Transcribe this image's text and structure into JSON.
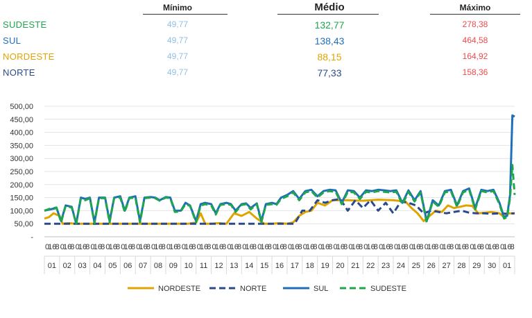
{
  "stats": {
    "headers": {
      "min": "Mínimo",
      "mean": "Médio",
      "max": "Máximo"
    },
    "rows": [
      {
        "name": "SUDESTE",
        "min": "49,77",
        "mean": "132,77",
        "max": "278,38",
        "color": "#1ea64a"
      },
      {
        "name": "SUL",
        "min": "49,77",
        "mean": "138,43",
        "max": "464,58",
        "color": "#1f6fb8"
      },
      {
        "name": "NORDESTE",
        "min": "49,77",
        "mean": "88,15",
        "max": "164,92",
        "color": "#e0a400"
      },
      {
        "name": "NORTE",
        "min": "49,77",
        "mean": "77,33",
        "max": "158,36",
        "color": "#2b4a8a"
      }
    ]
  },
  "chart_data": {
    "type": "line",
    "title": "",
    "xlabel": "",
    "ylabel": "",
    "ylim": [
      0,
      500
    ],
    "y_ticks": [
      "-",
      "50,00",
      "100,00",
      "150,00",
      "200,00",
      "250,00",
      "300,00",
      "350,00",
      "400,00",
      "450,00",
      "500,00"
    ],
    "hour_ticks": [
      "0",
      "16",
      "8"
    ],
    "day_labels": [
      "01",
      "02",
      "03",
      "04",
      "05",
      "06",
      "07",
      "08",
      "09",
      "10",
      "11",
      "12",
      "13",
      "14",
      "15",
      "16",
      "17",
      "18",
      "19",
      "20",
      "21",
      "22",
      "23",
      "24",
      "25",
      "26",
      "27",
      "28",
      "29",
      "30",
      "01"
    ],
    "x_unit": "day index (fractional, 0 = start of day 01)",
    "legend_position": "bottom",
    "grid": "horizontal",
    "series": [
      {
        "name": "NORDESTE",
        "color": "#e0a400",
        "style": "solid",
        "width": 3,
        "x": [
          0,
          0.3,
          0.6,
          1.0,
          1.2,
          1.6,
          2.0,
          2.4,
          2.8,
          3.5,
          4.5,
          5.5,
          6.5,
          7.5,
          8.5,
          9.5,
          10.0,
          10.3,
          10.6,
          11.0,
          11.5,
          12.0,
          12.5,
          13.0,
          13.5,
          14.0,
          14.5,
          15.0,
          15.5,
          16.0,
          16.4,
          16.8,
          17.2,
          17.6,
          18.0,
          18.5,
          19.0,
          20.0,
          21.0,
          22.0,
          23.0,
          23.8,
          24.2,
          24.6,
          25.0,
          25.4,
          25.8,
          26.2,
          26.6,
          27.0,
          27.4,
          27.8,
          28.2,
          28.6,
          29.0,
          29.5,
          30.0,
          30.3,
          30.6,
          31.0
        ],
        "values": [
          70,
          75,
          90,
          80,
          50,
          52,
          50,
          50,
          50,
          50,
          50,
          50,
          50,
          50,
          50,
          50,
          55,
          90,
          50,
          50,
          52,
          50,
          90,
          80,
          95,
          70,
          50,
          50,
          52,
          50,
          55,
          80,
          95,
          100,
          130,
          120,
          140,
          140,
          138,
          142,
          140,
          135,
          110,
          90,
          60,
          80,
          100,
          95,
          120,
          110,
          115,
          120,
          118,
          90,
          92,
          95,
          90,
          75,
          90,
          90
        ]
      },
      {
        "name": "NORTE",
        "color": "#2b4a8a",
        "style": "dashed",
        "width": 3,
        "x": [
          0,
          1,
          2,
          3,
          4,
          5,
          6,
          7,
          8,
          9,
          10,
          11,
          12,
          13,
          14,
          15,
          16,
          16.5,
          17,
          17.5,
          18,
          18.5,
          19,
          19.5,
          20,
          20.5,
          21,
          21.5,
          22,
          22.5,
          23,
          23.5,
          24,
          24.5,
          25,
          25.5,
          26,
          26.5,
          27,
          27.5,
          28,
          28.5,
          29,
          29.5,
          30,
          30.5,
          31
        ],
        "values": [
          50,
          50,
          50,
          50,
          50,
          50,
          50,
          50,
          50,
          50,
          50,
          50,
          50,
          50,
          50,
          50,
          50,
          50,
          100,
          100,
          140,
          130,
          140,
          145,
          100,
          140,
          110,
          140,
          100,
          130,
          90,
          135,
          130,
          120,
          90,
          100,
          95,
          90,
          95,
          100,
          92,
          90,
          90,
          88,
          90,
          88,
          90
        ]
      },
      {
        "name": "SUL",
        "color": "#1f6fb8",
        "style": "solid",
        "width": 3,
        "x": [
          0,
          0.4,
          0.8,
          1.1,
          1.4,
          1.8,
          2.1,
          2.4,
          2.7,
          3.0,
          3.3,
          3.6,
          4.0,
          4.3,
          4.6,
          5.0,
          5.3,
          5.6,
          6.0,
          6.3,
          6.6,
          7.0,
          7.3,
          7.6,
          8.0,
          8.3,
          8.6,
          9.0,
          9.3,
          9.6,
          10.0,
          10.3,
          10.6,
          11.0,
          11.3,
          11.6,
          12.0,
          12.3,
          12.6,
          13.0,
          13.3,
          13.6,
          14.0,
          14.3,
          14.6,
          15.0,
          15.3,
          15.6,
          16.0,
          16.4,
          16.8,
          17.2,
          17.6,
          18.0,
          18.4,
          18.8,
          19.2,
          19.6,
          20.0,
          20.4,
          20.8,
          21.2,
          21.6,
          22.0,
          22.4,
          22.8,
          23.2,
          23.6,
          24.0,
          24.4,
          24.8,
          25.2,
          25.6,
          26.0,
          26.4,
          26.8,
          27.2,
          27.6,
          28.0,
          28.4,
          28.8,
          29.2,
          29.6,
          30.0,
          30.3,
          30.5,
          30.7,
          30.85,
          31.0
        ],
        "values": [
          100,
          105,
          110,
          60,
          120,
          115,
          50,
          150,
          145,
          150,
          55,
          150,
          150,
          60,
          150,
          155,
          100,
          150,
          155,
          60,
          150,
          152,
          150,
          140,
          152,
          150,
          100,
          100,
          130,
          120,
          60,
          125,
          130,
          125,
          90,
          125,
          130,
          125,
          100,
          125,
          128,
          110,
          128,
          60,
          125,
          130,
          125,
          150,
          160,
          175,
          145,
          175,
          180,
          155,
          175,
          180,
          178,
          130,
          178,
          175,
          150,
          178,
          175,
          180,
          178,
          175,
          178,
          130,
          178,
          140,
          175,
          60,
          140,
          120,
          175,
          180,
          120,
          175,
          185,
          110,
          180,
          175,
          180,
          130,
          75,
          80,
          160,
          465,
          460
        ]
      },
      {
        "name": "SUDESTE",
        "color": "#1ea64a",
        "style": "dashed",
        "width": 3,
        "x": [
          0,
          0.4,
          0.8,
          1.1,
          1.4,
          1.8,
          2.1,
          2.4,
          2.7,
          3.0,
          3.3,
          3.6,
          4.0,
          4.3,
          4.6,
          5.0,
          5.3,
          5.6,
          6.0,
          6.3,
          6.6,
          7.0,
          7.3,
          7.6,
          8.0,
          8.3,
          8.6,
          9.0,
          9.3,
          9.6,
          10.0,
          10.3,
          10.6,
          11.0,
          11.3,
          11.6,
          12.0,
          12.3,
          12.6,
          13.0,
          13.3,
          13.6,
          14.0,
          14.3,
          14.6,
          15.0,
          15.3,
          15.6,
          16.0,
          16.4,
          16.8,
          17.2,
          17.6,
          18.0,
          18.4,
          18.8,
          19.2,
          19.6,
          20.0,
          20.4,
          20.8,
          21.2,
          21.6,
          22.0,
          22.4,
          22.8,
          23.2,
          23.6,
          24.0,
          24.4,
          24.8,
          25.2,
          25.6,
          26.0,
          26.4,
          26.8,
          27.2,
          27.6,
          28.0,
          28.4,
          28.8,
          29.2,
          29.6,
          30.0,
          30.3,
          30.5,
          30.7,
          30.85,
          31.0
        ],
        "values": [
          100,
          108,
          112,
          55,
          118,
          112,
          50,
          145,
          140,
          148,
          52,
          148,
          148,
          55,
          148,
          150,
          95,
          148,
          150,
          55,
          148,
          150,
          148,
          138,
          150,
          148,
          95,
          98,
          125,
          118,
          55,
          120,
          125,
          120,
          85,
          122,
          125,
          122,
          95,
          122,
          125,
          105,
          125,
          55,
          122,
          125,
          122,
          145,
          155,
          170,
          140,
          170,
          175,
          150,
          170,
          175,
          172,
          125,
          172,
          170,
          145,
          172,
          170,
          175,
          172,
          170,
          172,
          125,
          172,
          135,
          170,
          55,
          135,
          115,
          170,
          175,
          115,
          170,
          180,
          105,
          175,
          170,
          175,
          125,
          70,
          75,
          150,
          275,
          160
        ]
      }
    ]
  }
}
